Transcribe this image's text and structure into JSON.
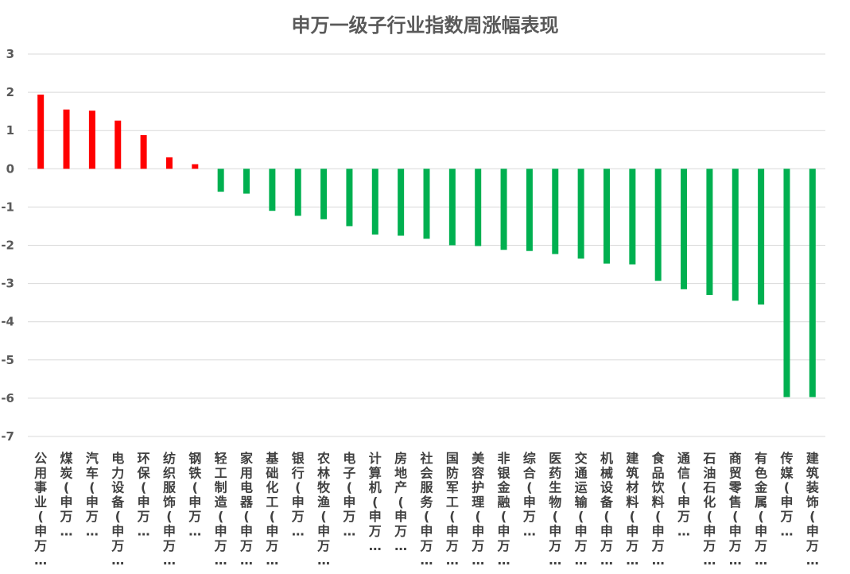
{
  "chart_data": {
    "type": "bar",
    "title": "申万一级子行业指数周涨幅表现",
    "xlabel": "",
    "ylabel": "",
    "ylim": [
      -7,
      3
    ],
    "yticks": [
      3,
      2,
      1,
      0,
      -1,
      -2,
      -3,
      -4,
      -5,
      -6,
      -7
    ],
    "grid": true,
    "colors": {
      "positive": "#ff0000",
      "negative": "#00b050",
      "grid": "#d9d9d9"
    },
    "categories": [
      "公用事业(申万…",
      "煤炭(申万…",
      "汽车(申万…",
      "电力设备(申万…",
      "环保(申万…",
      "纺织服饰(申万…",
      "钢铁(申万…",
      "轻工制造(申万…",
      "家用电器(申万…",
      "基础化工(申万…",
      "银行(申万…",
      "农林牧渔(申万…",
      "电子(申万…",
      "计算机(申万…",
      "房地产(申万…",
      "社会服务(申万…",
      "国防军工(申万…",
      "美容护理(申万…",
      "非银金融(申万…",
      "综合(申万…",
      "医药生物(申万…",
      "交通运输(申万…",
      "机械设备(申万…",
      "建筑材料(申万…",
      "食品饮料(申万…",
      "通信(申万…",
      "石油石化(申万…",
      "商贸零售(申万…",
      "有色金属(申万…",
      "传媒(申万…",
      "建筑装饰(申万…"
    ],
    "values": [
      1.94,
      1.55,
      1.52,
      1.26,
      0.88,
      0.3,
      0.12,
      -0.6,
      -0.65,
      -1.1,
      -1.23,
      -1.32,
      -1.5,
      -1.72,
      -1.75,
      -1.83,
      -2.0,
      -2.02,
      -2.12,
      -2.15,
      -2.23,
      -2.35,
      -2.48,
      -2.5,
      -2.93,
      -3.15,
      -3.3,
      -3.45,
      -3.55,
      -5.97,
      -5.97
    ]
  }
}
